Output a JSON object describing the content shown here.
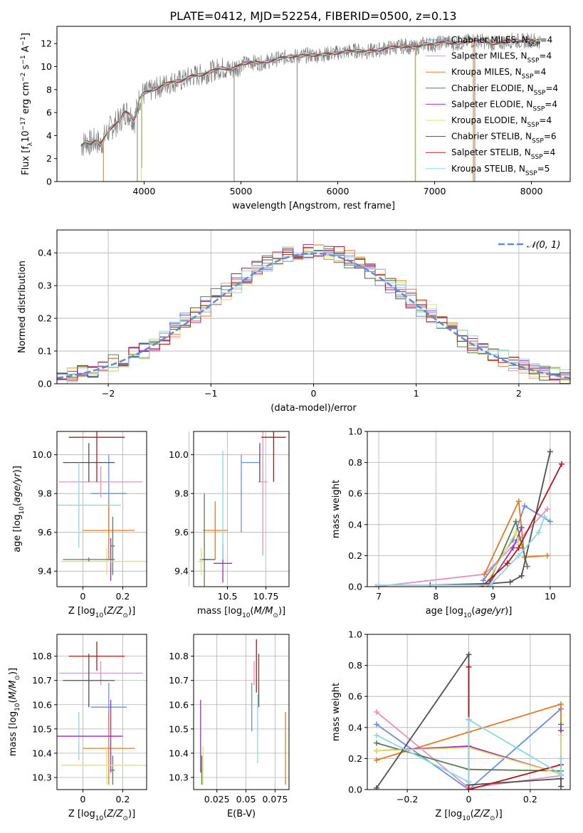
{
  "title": "PLATE=0412, MJD=52254, FIBERID=0500, z=0.13",
  "colors": {
    "Chabrier MILES": "#6a8fd8",
    "Salpeter MILES": "#e68fc1",
    "Kroupa MILES": "#e07b22",
    "Chabrier ELODIE": "#5a7d52",
    "Salpeter ELODIE": "#9b30c0",
    "Kroupa ELODIE": "#dfe36a",
    "Chabrier STELIB": "#505050",
    "Salpeter STELIB": "#b01818",
    "Kroupa STELIB": "#8ad8e0",
    "data": "#808080",
    "normal": "#5e8ad8",
    "grid": "#b0b0b0"
  },
  "chart_data": [
    {
      "id": "spectrum",
      "type": "line",
      "xlabel": "wavelength [Angstrom, rest frame]",
      "ylabel": "Flux [f",
      "xlim": [
        3100,
        8400
      ],
      "ylim": [
        0,
        13.5
      ],
      "xticks": [
        4000,
        5000,
        6000,
        7000,
        8000
      ],
      "yticks": [
        0,
        2,
        4,
        6,
        8,
        10,
        12
      ],
      "grid": false,
      "legend_position": "top-right",
      "legend": [
        {
          "model": "Chabrier MILES",
          "nssp": "4"
        },
        {
          "model": "Salpeter MILES",
          "nssp": "4"
        },
        {
          "model": "Kroupa MILES",
          "nssp": "4"
        },
        {
          "model": "Chabrier ELODIE",
          "nssp": "4"
        },
        {
          "model": "Salpeter ELODIE",
          "nssp": "4"
        },
        {
          "model": "Kroupa ELODIE",
          "nssp": "4"
        },
        {
          "model": "Chabrier STELIB",
          "nssp": "6"
        },
        {
          "model": "Salpeter STELIB",
          "nssp": "4"
        },
        {
          "model": "Kroupa STELIB",
          "nssp": "5"
        }
      ],
      "data_x": [
        3350,
        3400,
        3450,
        3500,
        3550,
        3600,
        3650,
        3700,
        3750,
        3800,
        3850,
        3900,
        3950,
        4000,
        4100,
        4200,
        4300,
        4400,
        4500,
        4600,
        4700,
        4800,
        4900,
        5000,
        5100,
        5200,
        5300,
        5400,
        5500,
        5600,
        5700,
        5800,
        5900,
        6000,
        6100,
        6200,
        6300,
        6400,
        6500,
        6600,
        6700,
        6800,
        6900,
        7000,
        7100,
        7200,
        7300,
        7400,
        7500,
        7600,
        7700,
        7800,
        7900,
        8000,
        8100
      ],
      "data_y": [
        3.1,
        3.5,
        3.3,
        3.6,
        3.2,
        4.0,
        4.6,
        5.0,
        5.3,
        6.1,
        5.9,
        5.3,
        7.2,
        7.7,
        8.0,
        8.4,
        8.7,
        8.8,
        9.2,
        9.3,
        9.6,
        9.9,
        9.7,
        10.2,
        10.4,
        10.3,
        10.5,
        10.7,
        10.9,
        10.9,
        11.0,
        11.0,
        11.1,
        11.2,
        11.3,
        11.4,
        11.3,
        11.4,
        11.6,
        11.7,
        11.8,
        11.6,
        12.0,
        11.9,
        12.2,
        12.0,
        12.1,
        12.3,
        12.2,
        12.0,
        12.1,
        12.3,
        12.2,
        12.3,
        12.2
      ],
      "dips": [
        {
          "x": 3930,
          "y": 0.0
        },
        {
          "x": 3975,
          "y": 1.2
        },
        {
          "x": 4930,
          "y": 0.0
        },
        {
          "x": 5580,
          "y": 0.0
        },
        {
          "x": 6800,
          "y": 0.0
        },
        {
          "x": 7400,
          "y": 0.0
        },
        {
          "x": 7415,
          "y": 0.0
        }
      ]
    },
    {
      "id": "residuals",
      "type": "line",
      "xlabel": "(data-model)/error",
      "ylabel": "Normed distribution",
      "xlim": [
        -2.5,
        2.5
      ],
      "ylim": [
        0,
        0.47
      ],
      "xticks": [
        -2,
        -1,
        0,
        1,
        2
      ],
      "yticks": [
        0.0,
        0.1,
        0.2,
        0.3,
        0.4
      ],
      "grid": true,
      "legend_position": "top-right",
      "legend": [
        "𝒩(0, 1)"
      ],
      "bin_width": 0.1
    },
    {
      "id": "age-vs-Z",
      "type": "scatter",
      "xlabel": "Z [log",
      "ylabel": "age  [log",
      "xlim": [
        -0.13,
        0.32
      ],
      "ylim": [
        9.32,
        10.12
      ],
      "xticks": [
        0.0,
        0.2
      ],
      "yticks": [
        9.4,
        9.6,
        9.8,
        10.0
      ],
      "grid": true,
      "points": [
        {
          "model": "Chabrier MILES",
          "x": 0.13,
          "xerr": 0.09,
          "y": 9.8,
          "yerr": 0.2
        },
        {
          "model": "Salpeter MILES",
          "x": 0.09,
          "xerr": 0.21,
          "y": 9.86,
          "yerr": 0.08
        },
        {
          "model": "Kroupa MILES",
          "x": 0.13,
          "xerr": 0.13,
          "y": 9.61,
          "yerr": 0.15
        },
        {
          "model": "Chabrier ELODIE",
          "x": 0.15,
          "xerr": 0.01,
          "y": 9.53,
          "yerr": 0.15
        },
        {
          "model": "Salpeter ELODIE",
          "x": 0.14,
          "xerr": 0.01,
          "y": 9.46,
          "yerr": 0.11
        },
        {
          "model": "Kroupa ELODIE",
          "x": 0.12,
          "xerr": 0.23,
          "y": 9.45,
          "yerr": 0.07
        },
        {
          "model": "Chabrier STELIB",
          "x": 0.03,
          "xerr": 0.13,
          "y": 9.96,
          "yerr": 0.1
        },
        {
          "model": "Salpeter STELIB",
          "x": 0.07,
          "xerr": 0.14,
          "y": 10.09,
          "yerr": 0.23
        },
        {
          "model": "Kroupa STELIB",
          "x": -0.02,
          "xerr": 0.21,
          "y": 9.74,
          "yerr": 0.22
        },
        {
          "model": "Chabrier ELODIE",
          "x": 0.03,
          "xerr": 0.13,
          "y": 9.46,
          "yerr": 0.01
        }
      ]
    },
    {
      "id": "age-vs-mass",
      "type": "scatter",
      "xlabel": "mass [log",
      "ylabel": "",
      "xlim": [
        10.28,
        10.9
      ],
      "ylim": [
        9.32,
        10.12
      ],
      "xticks": [
        10.25,
        10.5,
        10.75
      ],
      "yticks": [
        9.4,
        9.6,
        9.8,
        10.0
      ],
      "grid": true,
      "points": [
        {
          "model": "Chabrier MILES",
          "x": 10.59,
          "xerr": 0.0,
          "y": 9.8,
          "yerr": 0.2
        },
        {
          "model": "Chabrier MILES",
          "x": 10.65,
          "xerr": 0.06,
          "y": 9.96,
          "yerr": 0.0
        },
        {
          "model": "Salpeter MILES",
          "x": 10.73,
          "xerr": 0.03,
          "y": 9.86,
          "yerr": 0.38
        },
        {
          "model": "Kroupa MILES",
          "x": 10.42,
          "xerr": 0.08,
          "y": 9.61,
          "yerr": 0.15
        },
        {
          "model": "Chabrier ELODIE",
          "x": 10.35,
          "xerr": 0.03,
          "y": 9.46,
          "yerr": 0.34
        },
        {
          "model": "Salpeter ELODIE",
          "x": 10.47,
          "xerr": 0.06,
          "y": 9.44,
          "yerr": 0.1
        },
        {
          "model": "Kroupa ELODIE",
          "x": 10.33,
          "xerr": 0.02,
          "y": 9.45,
          "yerr": 0.07
        },
        {
          "model": "Chabrier STELIB",
          "x": 10.71,
          "xerr": 0.0,
          "y": 9.96,
          "yerr": 0.1
        },
        {
          "model": "Salpeter STELIB",
          "x": 10.8,
          "xerr": 0.08,
          "y": 10.09,
          "yerr": 0.23
        },
        {
          "model": "Kroupa STELIB",
          "x": 10.47,
          "xerr": 0.0,
          "y": 9.74,
          "yerr": 0.28
        },
        {
          "model": "Chabrier STELIB",
          "x": 10.38,
          "xerr": 0.04,
          "y": 9.46,
          "yerr": 0.0
        }
      ]
    },
    {
      "id": "massweight-vs-age",
      "type": "line",
      "xlabel": "age  [log",
      "ylabel": "mass weight",
      "xlim": [
        6.8,
        10.35
      ],
      "ylim": [
        0,
        1.0
      ],
      "xticks": [
        7,
        8,
        9,
        10
      ],
      "yticks": [
        0.0,
        0.2,
        0.4,
        0.6,
        0.8,
        1.0
      ],
      "grid": true,
      "series": [
        {
          "model": "Chabrier MILES",
          "x": [
            8.83,
            9.35,
            9.55,
            10.0
          ],
          "y": [
            0.04,
            0.3,
            0.52,
            0.42
          ]
        },
        {
          "model": "Salpeter MILES",
          "x": [
            6.95,
            8.85,
            9.45,
            9.95
          ],
          "y": [
            0.0,
            0.08,
            0.3,
            0.5
          ]
        },
        {
          "model": "Kroupa MILES",
          "x": [
            8.85,
            9.45,
            9.55,
            9.95
          ],
          "y": [
            0.08,
            0.55,
            0.19,
            0.2
          ]
        },
        {
          "model": "Chabrier ELODIE",
          "x": [
            8.9,
            9.4,
            9.6
          ],
          "y": [
            0.0,
            0.42,
            0.13
          ]
        },
        {
          "model": "Salpeter ELODIE",
          "x": [
            8.9,
            9.35,
            9.5
          ],
          "y": [
            0.0,
            0.25,
            0.38
          ]
        },
        {
          "model": "Kroupa ELODIE",
          "x": [
            8.85,
            9.4,
            9.45
          ],
          "y": [
            0.0,
            0.35,
            0.27
          ]
        },
        {
          "model": "Chabrier STELIB",
          "x": [
            7.9,
            8.95,
            9.3,
            9.5,
            10.0
          ],
          "y": [
            0.01,
            0.02,
            0.03,
            0.07,
            0.87
          ]
        },
        {
          "model": "Salpeter STELIB",
          "x": [
            8.8,
            9.25,
            9.45,
            10.2
          ],
          "y": [
            0.0,
            0.15,
            0.25,
            0.79
          ]
        },
        {
          "model": "Kroupa STELIB",
          "x": [
            7.0,
            8.95,
            9.45,
            9.8,
            9.9
          ],
          "y": [
            0.01,
            0.01,
            0.2,
            0.35,
            0.45
          ]
        }
      ]
    },
    {
      "id": "mass-vs-Z",
      "type": "scatter",
      "xlabel": "Z [log",
      "ylabel": "mass [log",
      "xlim": [
        -0.13,
        0.32
      ],
      "ylim": [
        10.25,
        10.89
      ],
      "xticks": [
        0.0,
        0.2
      ],
      "yticks": [
        10.3,
        10.4,
        10.5,
        10.6,
        10.7,
        10.8
      ],
      "grid": true,
      "points": [
        {
          "model": "Chabrier MILES",
          "x": 0.13,
          "xerr": 0.09,
          "y": 10.59,
          "yerr": 0.1
        },
        {
          "model": "Salpeter MILES",
          "x": 0.09,
          "xerr": 0.21,
          "y": 10.73,
          "yerr": 0.05
        },
        {
          "model": "Kroupa MILES",
          "x": 0.13,
          "xerr": 0.13,
          "y": 10.42,
          "yerr": 0.15
        },
        {
          "model": "Chabrier ELODIE",
          "x": 0.15,
          "xerr": 0.01,
          "y": 10.33,
          "yerr": 0.06
        },
        {
          "model": "Salpeter ELODIE",
          "x": 0.14,
          "xerr": 0.01,
          "y": 10.47,
          "yerr": 0.15
        },
        {
          "model": "Kroupa ELODIE",
          "x": 0.12,
          "xerr": 0.23,
          "y": 10.35,
          "yerr": 0.08
        },
        {
          "model": "Chabrier STELIB",
          "x": 0.03,
          "xerr": 0.13,
          "y": 10.7,
          "yerr": 0.11
        },
        {
          "model": "Salpeter STELIB",
          "x": 0.07,
          "xerr": 0.14,
          "y": 10.8,
          "yerr": 0.06
        },
        {
          "model": "Kroupa STELIB",
          "x": -0.02,
          "xerr": 0.21,
          "y": 10.47,
          "yerr": 0.1
        },
        {
          "model": "Salpeter ELODIE",
          "x": 0.0,
          "xerr": 0.2,
          "y": 10.47,
          "yerr": 0.0
        }
      ]
    },
    {
      "id": "mass-vs-EBV",
      "type": "scatter",
      "xlabel": "E(B-V)",
      "ylabel": "",
      "xlim": [
        0.005,
        0.087
      ],
      "ylim": [
        10.25,
        10.89
      ],
      "xticks": [
        0.025,
        0.05,
        0.075
      ],
      "yticks": [
        10.3,
        10.4,
        10.5,
        10.6,
        10.7,
        10.8
      ],
      "grid": true,
      "points": [
        {
          "model": "Chabrier MILES",
          "x": 0.055,
          "xerr": 0.0,
          "y": 10.59,
          "yerr": 0.1
        },
        {
          "model": "Salpeter MILES",
          "x": 0.057,
          "xerr": 0.0,
          "y": 10.73,
          "yerr": 0.05
        },
        {
          "model": "Kroupa MILES",
          "x": 0.084,
          "xerr": 0.0,
          "y": 10.42,
          "yerr": 0.15
        },
        {
          "model": "Chabrier ELODIE",
          "x": 0.012,
          "xerr": 0.0,
          "y": 10.33,
          "yerr": 0.06
        },
        {
          "model": "Salpeter ELODIE",
          "x": 0.011,
          "xerr": 0.0,
          "y": 10.47,
          "yerr": 0.15
        },
        {
          "model": "Kroupa ELODIE",
          "x": 0.013,
          "xerr": 0.0,
          "y": 10.35,
          "yerr": 0.08
        },
        {
          "model": "Chabrier STELIB",
          "x": 0.061,
          "xerr": 0.0,
          "y": 10.7,
          "yerr": 0.11
        },
        {
          "model": "Salpeter STELIB",
          "x": 0.059,
          "xerr": 0.0,
          "y": 10.76,
          "yerr": 0.11
        },
        {
          "model": "Kroupa STELIB",
          "x": 0.06,
          "xerr": 0.0,
          "y": 10.5,
          "yerr": 0.14
        }
      ]
    },
    {
      "id": "massweight-vs-Z",
      "type": "line",
      "xlabel": "Z [log",
      "ylabel": "mass weight",
      "xlim": [
        -0.33,
        0.33
      ],
      "ylim": [
        0,
        1.0
      ],
      "xticks": [
        -0.2,
        0.0,
        0.2
      ],
      "yticks": [
        0.0,
        0.2,
        0.4,
        0.6,
        0.8,
        1.0
      ],
      "grid": true,
      "series": [
        {
          "model": "Chabrier MILES",
          "x": [
            -0.3,
            0.0,
            0.3,
            0.3
          ],
          "y": [
            0.42,
            0.0,
            0.52,
            0.52
          ]
        },
        {
          "model": "Salpeter MILES",
          "x": [
            -0.3,
            0.0,
            0.3
          ],
          "y": [
            0.5,
            0.01,
            0.09
          ]
        },
        {
          "model": "Kroupa MILES",
          "x": [
            -0.3,
            0.0,
            0.3,
            0.3
          ],
          "y": [
            0.19,
            0.37,
            0.55,
            0.2
          ]
        },
        {
          "model": "Chabrier ELODIE",
          "x": [
            -0.3,
            0.0,
            0.3,
            0.3
          ],
          "y": [
            0.3,
            0.13,
            0.12,
            0.42
          ]
        },
        {
          "model": "Salpeter ELODIE",
          "x": [
            -0.3,
            0.0,
            0.3,
            0.3
          ],
          "y": [
            0.25,
            0.28,
            0.1,
            0.38
          ]
        },
        {
          "model": "Kroupa ELODIE",
          "x": [
            -0.3,
            0.0,
            0.3,
            0.3
          ],
          "y": [
            0.25,
            0.27,
            0.1,
            0.35
          ]
        },
        {
          "model": "Chabrier STELIB",
          "x": [
            -0.3,
            0.0,
            0.0,
            0.3,
            0.3
          ],
          "y": [
            0.01,
            0.87,
            0.03,
            0.07,
            0.02
          ]
        },
        {
          "model": "Salpeter STELIB",
          "x": [
            0.0,
            0.0,
            0.0,
            0.3
          ],
          "y": [
            0.79,
            0.45,
            0.0,
            0.16
          ]
        },
        {
          "model": "Kroupa STELIB",
          "x": [
            -0.3,
            0.0,
            0.0,
            0.3,
            0.3
          ],
          "y": [
            0.35,
            0.05,
            0.45,
            0.1,
            0.2
          ]
        }
      ]
    }
  ]
}
